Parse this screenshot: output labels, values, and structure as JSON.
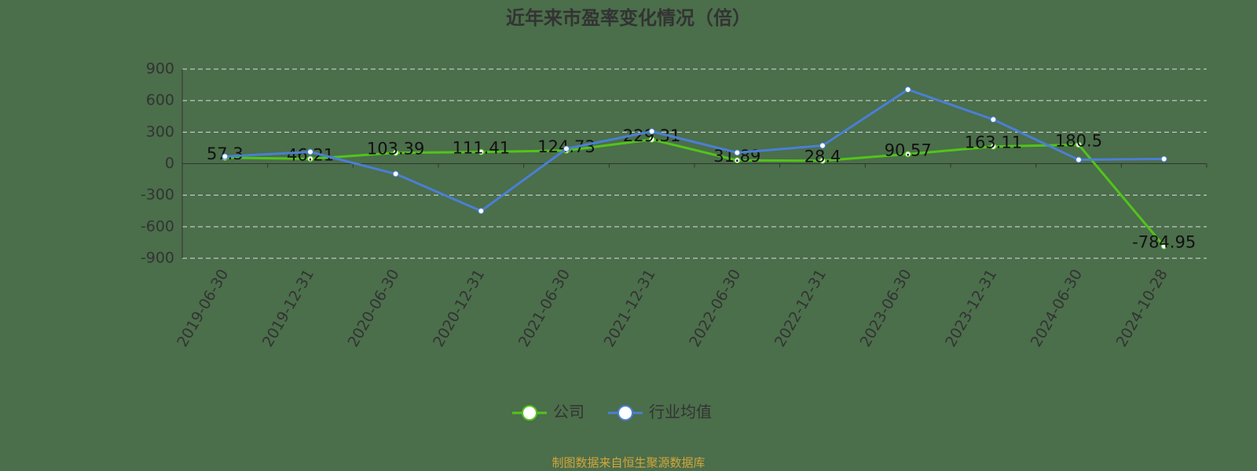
{
  "chart_data": {
    "type": "line",
    "title": "近年来市盈率变化情况（倍）",
    "categories": [
      "2019-06-30",
      "2019-12-31",
      "2020-06-30",
      "2020-12-31",
      "2021-06-30",
      "2021-12-31",
      "2022-06-30",
      "2022-12-31",
      "2023-06-30",
      "2023-12-31",
      "2024-06-30",
      "2024-10-28"
    ],
    "series": [
      {
        "name": "公司",
        "color": "#52c41a",
        "values": [
          57.3,
          46.21,
          103.39,
          111.41,
          124.73,
          229.31,
          31.89,
          28.4,
          90.57,
          163.11,
          180.5,
          -784.95
        ]
      },
      {
        "name": "行业均值",
        "color": "#4a7fd4",
        "values": [
          68,
          112,
          -97,
          -450,
          142,
          307,
          105,
          172,
          705,
          420,
          37,
          45
        ]
      }
    ],
    "ylim": [
      -900,
      900
    ],
    "yticks": [
      -900,
      -600,
      -300,
      0,
      300,
      600,
      900
    ],
    "grid": true,
    "source": "制图数据来自恒生聚源数据库"
  }
}
